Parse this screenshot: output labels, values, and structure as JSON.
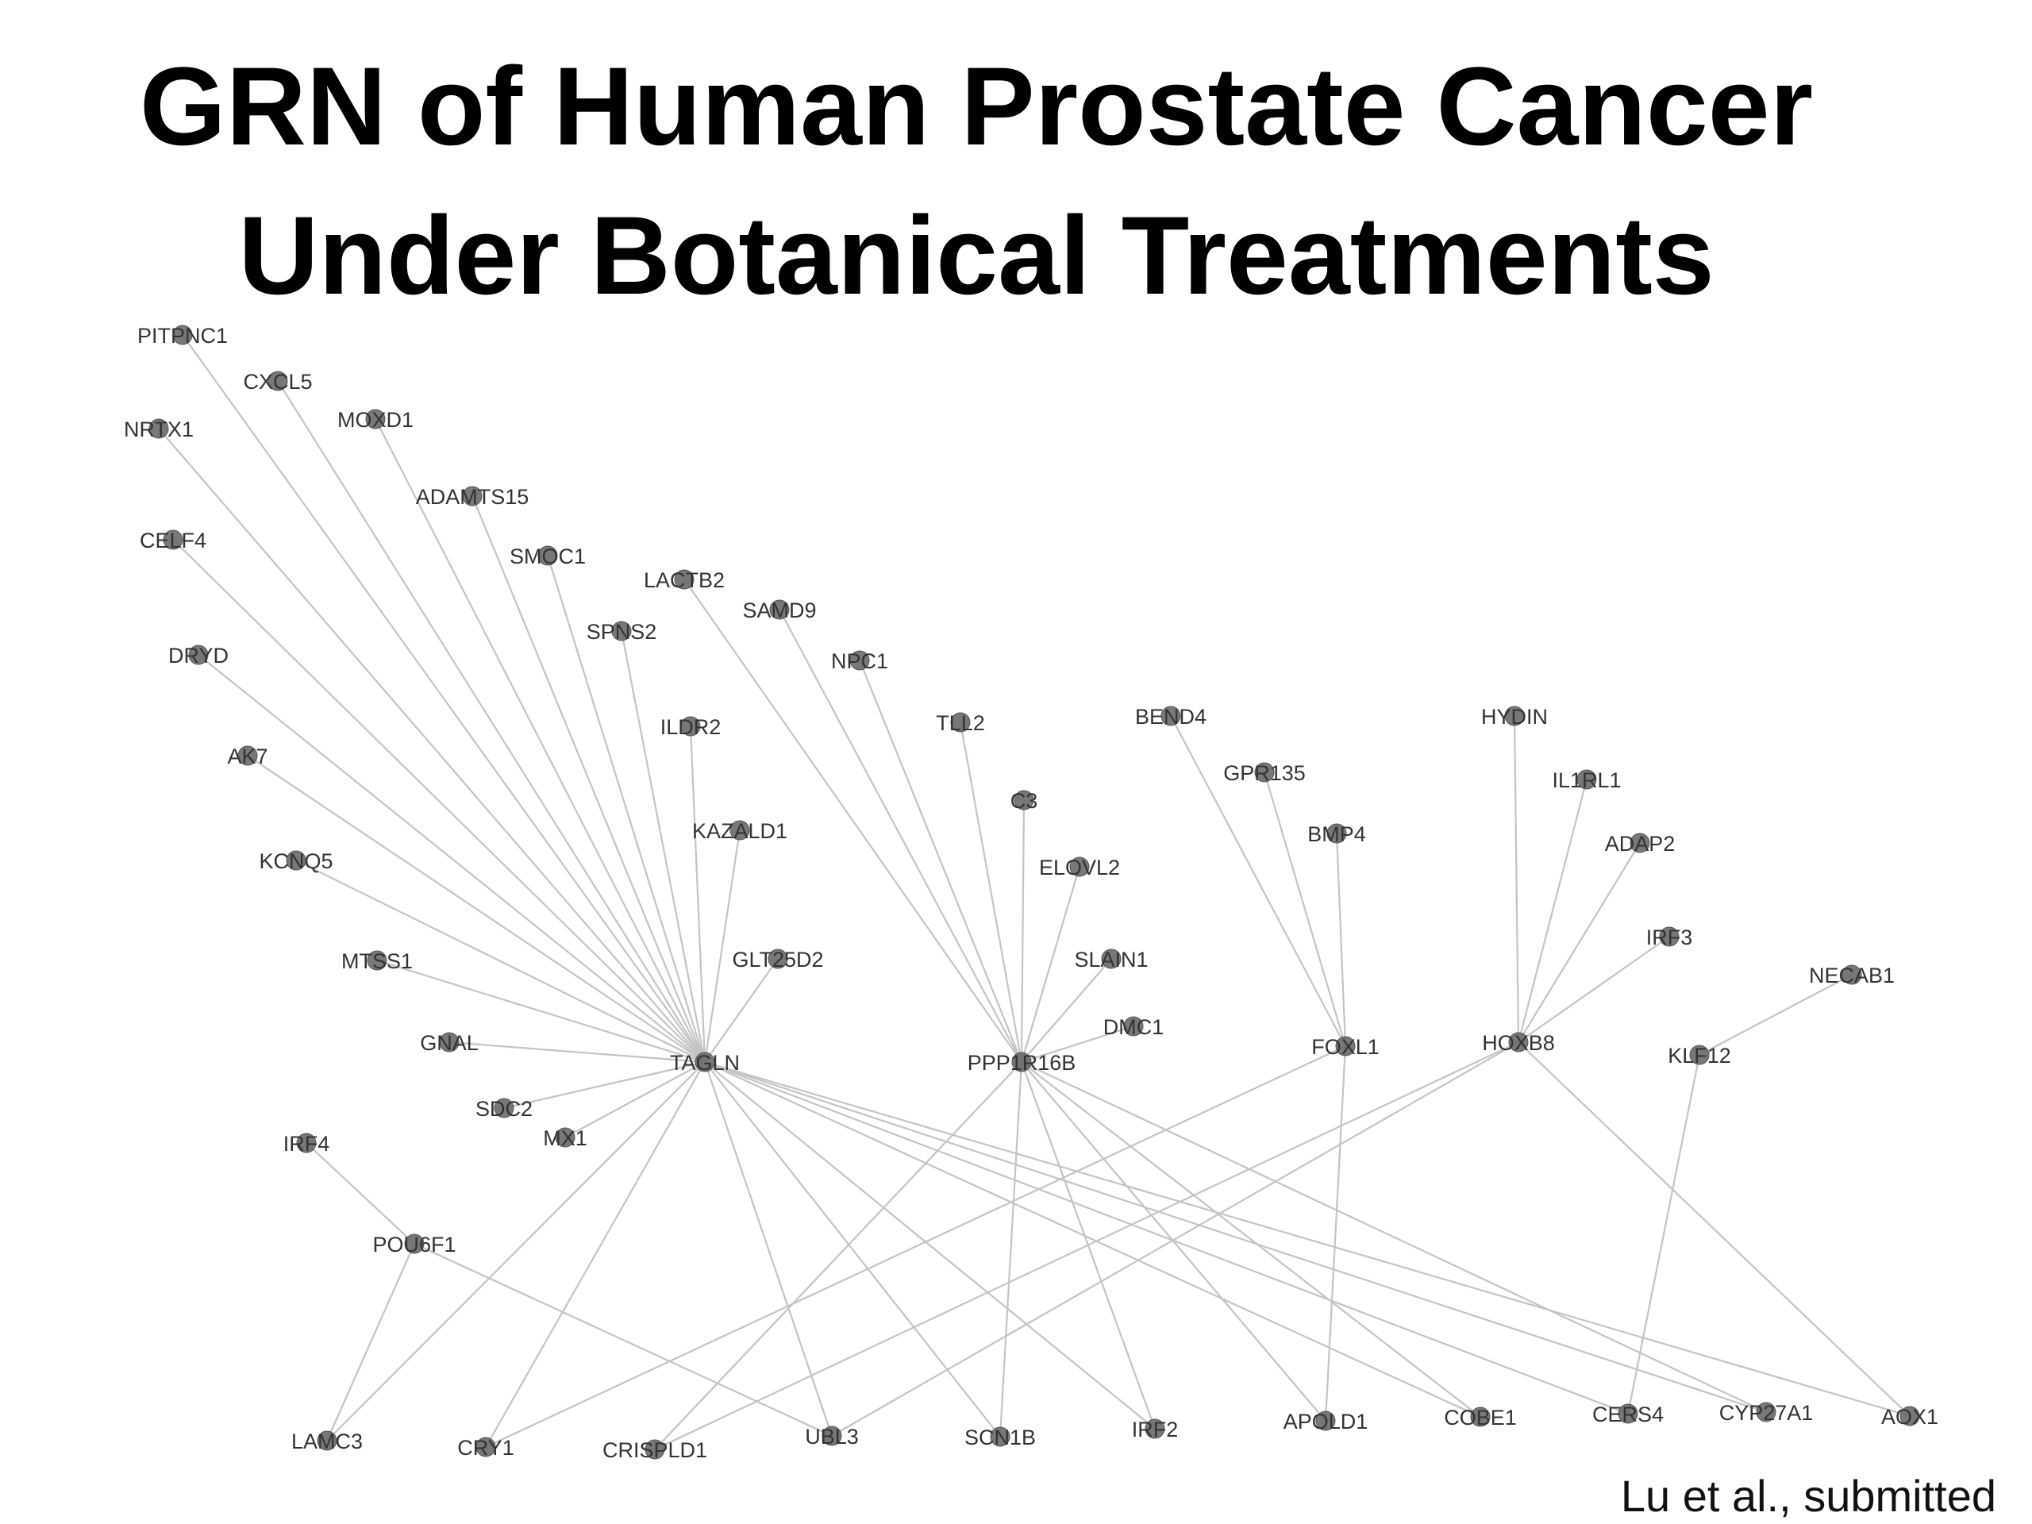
{
  "title": {
    "line1": "GRN of Human Prostate Cancer",
    "line2": "Under Botanical Treatments"
  },
  "credit": "Lu et al., submitted",
  "nodes": [
    {
      "id": "PITPNC1",
      "label": "PITPNC1"
    },
    {
      "id": "CXCL5",
      "label": "CXCL5"
    },
    {
      "id": "NRTX1",
      "label": "NRTX1"
    },
    {
      "id": "MOXD1",
      "label": "MOXD1"
    },
    {
      "id": "ADAMTS15",
      "label": "ADAMTS15"
    },
    {
      "id": "CELF4",
      "label": "CELF4"
    },
    {
      "id": "SMOC1",
      "label": "SMOC1"
    },
    {
      "id": "LACTB2",
      "label": "LACTB2"
    },
    {
      "id": "SAMD9",
      "label": "SAMD9"
    },
    {
      "id": "SPNS2",
      "label": "SPNS2"
    },
    {
      "id": "DRYD",
      "label": "DRYD"
    },
    {
      "id": "NPC1",
      "label": "NPC1"
    },
    {
      "id": "ILDR2",
      "label": "ILDR2"
    },
    {
      "id": "TLL2",
      "label": "TLL2"
    },
    {
      "id": "BEND4",
      "label": "BEND4"
    },
    {
      "id": "HYDIN",
      "label": "HYDIN"
    },
    {
      "id": "AK7",
      "label": "AK7"
    },
    {
      "id": "GPR135",
      "label": "GPR135"
    },
    {
      "id": "C3",
      "label": "C3"
    },
    {
      "id": "IL1RL1",
      "label": "IL1RL1"
    },
    {
      "id": "KAZALD1",
      "label": "KAZALD1"
    },
    {
      "id": "BMP4",
      "label": "BMP4"
    },
    {
      "id": "ADAP2",
      "label": "ADAP2"
    },
    {
      "id": "KCNQ5",
      "label": "KCNQ5"
    },
    {
      "id": "ELOVL2",
      "label": "ELOVL2"
    },
    {
      "id": "IRF3",
      "label": "IRF3"
    },
    {
      "id": "MTSS1",
      "label": "MTSS1"
    },
    {
      "id": "GLT25D2",
      "label": "GLT25D2"
    },
    {
      "id": "SLAIN1",
      "label": "SLAIN1"
    },
    {
      "id": "NECAB1",
      "label": "NECAB1"
    },
    {
      "id": "DMC1",
      "label": "DMC1"
    },
    {
      "id": "GNAL",
      "label": "GNAL"
    },
    {
      "id": "TAGLN",
      "label": "TAGLN"
    },
    {
      "id": "PPP1R16B",
      "label": "PPP1R16B"
    },
    {
      "id": "FOXL1",
      "label": "FOXL1"
    },
    {
      "id": "HOXB8",
      "label": "HOXB8"
    },
    {
      "id": "KLF12",
      "label": "KLF12"
    },
    {
      "id": "SDC2",
      "label": "SDC2"
    },
    {
      "id": "MX1",
      "label": "MX1"
    },
    {
      "id": "IRF4",
      "label": "IRF4"
    },
    {
      "id": "POU6F1",
      "label": "POU6F1"
    },
    {
      "id": "LAMC3",
      "label": "LAMC3"
    },
    {
      "id": "CRY1",
      "label": "CRY1"
    },
    {
      "id": "CRISPLD1",
      "label": "CRISPLD1"
    },
    {
      "id": "UBL3",
      "label": "UBL3"
    },
    {
      "id": "SCN1B",
      "label": "SCN1B"
    },
    {
      "id": "IRF2",
      "label": "IRF2"
    },
    {
      "id": "APOLD1",
      "label": "APOLD1"
    },
    {
      "id": "COBE1",
      "label": "COBE1"
    },
    {
      "id": "CERS4",
      "label": "CERS4"
    },
    {
      "id": "CYP27A1",
      "label": "CYP27A1"
    },
    {
      "id": "AOX1",
      "label": "AOX1"
    }
  ],
  "edges": [
    [
      "PITPNC1",
      "TAGLN"
    ],
    [
      "CXCL5",
      "TAGLN"
    ],
    [
      "NRTX1",
      "TAGLN"
    ],
    [
      "MOXD1",
      "TAGLN"
    ],
    [
      "ADAMTS15",
      "TAGLN"
    ],
    [
      "CELF4",
      "TAGLN"
    ],
    [
      "SMOC1",
      "TAGLN"
    ],
    [
      "SPNS2",
      "TAGLN"
    ],
    [
      "DRYD",
      "TAGLN"
    ],
    [
      "ILDR2",
      "TAGLN"
    ],
    [
      "AK7",
      "TAGLN"
    ],
    [
      "KAZALD1",
      "TAGLN"
    ],
    [
      "KCNQ5",
      "TAGLN"
    ],
    [
      "MTSS1",
      "TAGLN"
    ],
    [
      "GLT25D2",
      "TAGLN"
    ],
    [
      "GNAL",
      "TAGLN"
    ],
    [
      "SDC2",
      "TAGLN"
    ],
    [
      "MX1",
      "TAGLN"
    ],
    [
      "TAGLN",
      "CRY1"
    ],
    [
      "TAGLN",
      "UBL3"
    ],
    [
      "TAGLN",
      "SCN1B"
    ],
    [
      "TAGLN",
      "IRF2"
    ],
    [
      "TAGLN",
      "COBE1"
    ],
    [
      "TAGLN",
      "CERS4"
    ],
    [
      "TAGLN",
      "CYP27A1"
    ],
    [
      "TAGLN",
      "AOX1"
    ],
    [
      "LACTB2",
      "PPP1R16B"
    ],
    [
      "SAMD9",
      "PPP1R16B"
    ],
    [
      "NPC1",
      "PPP1R16B"
    ],
    [
      "TLL2",
      "PPP1R16B"
    ],
    [
      "C3",
      "PPP1R16B"
    ],
    [
      "ELOVL2",
      "PPP1R16B"
    ],
    [
      "SLAIN1",
      "PPP1R16B"
    ],
    [
      "DMC1",
      "PPP1R16B"
    ],
    [
      "PPP1R16B",
      "CRISPLD1"
    ],
    [
      "PPP1R16B",
      "SCN1B"
    ],
    [
      "PPP1R16B",
      "IRF2"
    ],
    [
      "PPP1R16B",
      "APOLD1"
    ],
    [
      "PPP1R16B",
      "COBE1"
    ],
    [
      "PPP1R16B",
      "CYP27A1"
    ],
    [
      "BEND4",
      "FOXL1"
    ],
    [
      "GPR135",
      "FOXL1"
    ],
    [
      "BMP4",
      "FOXL1"
    ],
    [
      "FOXL1",
      "CRY1"
    ],
    [
      "FOXL1",
      "APOLD1"
    ],
    [
      "HYDIN",
      "HOXB8"
    ],
    [
      "IL1RL1",
      "HOXB8"
    ],
    [
      "ADAP2",
      "HOXB8"
    ],
    [
      "IRF3",
      "HOXB8"
    ],
    [
      "HOXB8",
      "CRISPLD1"
    ],
    [
      "HOXB8",
      "UBL3"
    ],
    [
      "HOXB8",
      "AOX1"
    ],
    [
      "NECAB1",
      "KLF12"
    ],
    [
      "KLF12",
      "CERS4"
    ],
    [
      "IRF4",
      "POU6F1"
    ],
    [
      "POU6F1",
      "LAMC3"
    ],
    [
      "POU6F1",
      "UBL3"
    ],
    [
      "TAGLN",
      "LAMC3"
    ]
  ]
}
